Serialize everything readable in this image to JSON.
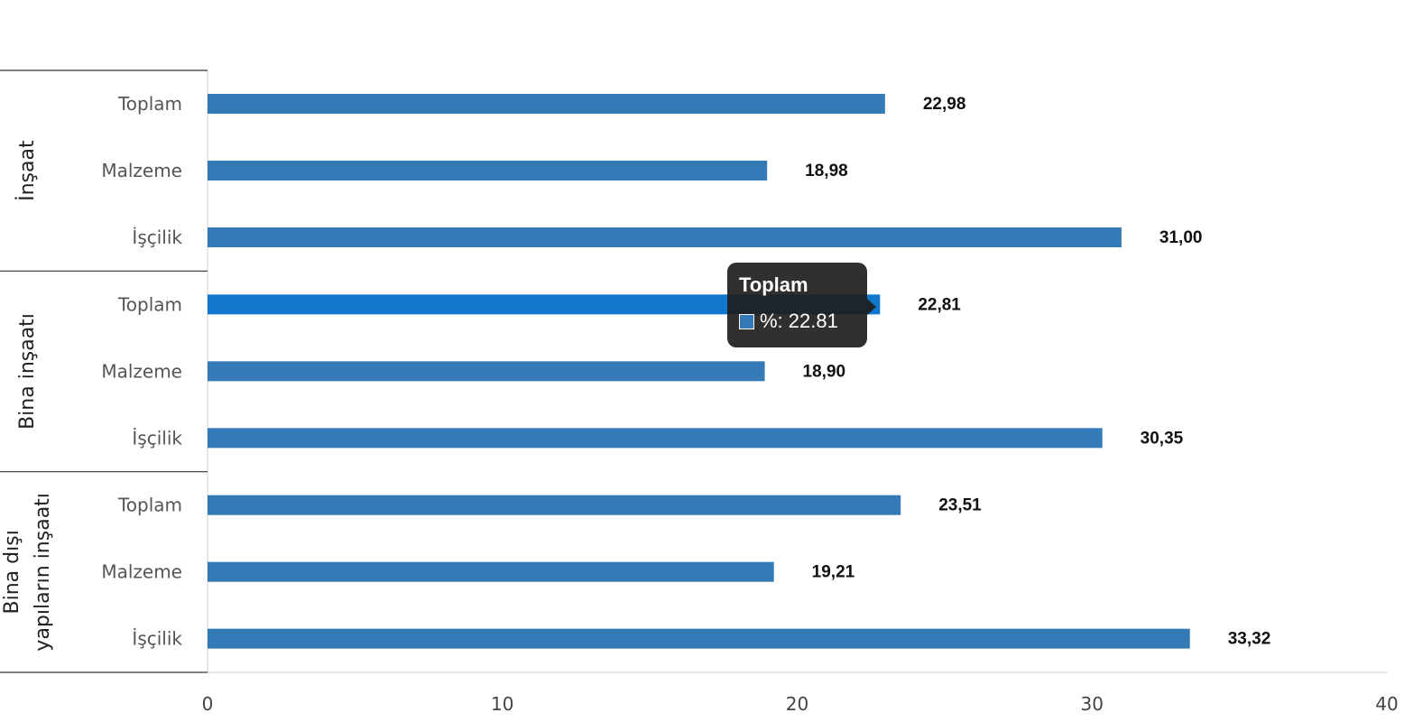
{
  "chart_data": {
    "type": "bar",
    "orientation": "horizontal",
    "groups": [
      {
        "name": "İnşaat",
        "lines": [
          "İnşaat"
        ],
        "categories": [
          "Toplam",
          "Malzeme",
          "İşçilik"
        ],
        "values": [
          22.98,
          18.98,
          31.0
        ],
        "labels": [
          "22,98",
          "18,98",
          "31,00"
        ]
      },
      {
        "name": "Bina inşaatı",
        "lines": [
          "Bina inşaatı"
        ],
        "categories": [
          "Toplam",
          "Malzeme",
          "İşçilik"
        ],
        "values": [
          22.81,
          18.9,
          30.35
        ],
        "labels": [
          "22,81",
          "18,90",
          "30,35"
        ]
      },
      {
        "name": "Bina dışı yapıların inşaatı",
        "lines": [
          "Bina dışı",
          "yapıların inşaatı"
        ],
        "categories": [
          "Toplam",
          "Malzeme",
          "İşçilik"
        ],
        "values": [
          23.51,
          19.21,
          33.32
        ],
        "labels": [
          "23,51",
          "19,21",
          "33,32"
        ]
      }
    ],
    "xlim": [
      0,
      40
    ],
    "xticks": [
      0,
      10,
      20,
      30,
      40
    ],
    "grid": false,
    "colors": {
      "bar": "#337ab7",
      "bar_hover": "#1177cc"
    },
    "hover": {
      "group_index": 1,
      "category_index": 0
    }
  },
  "tooltip": {
    "title": "Toplam",
    "row": "%: 22.81",
    "swatch_color": "#337ab7"
  }
}
